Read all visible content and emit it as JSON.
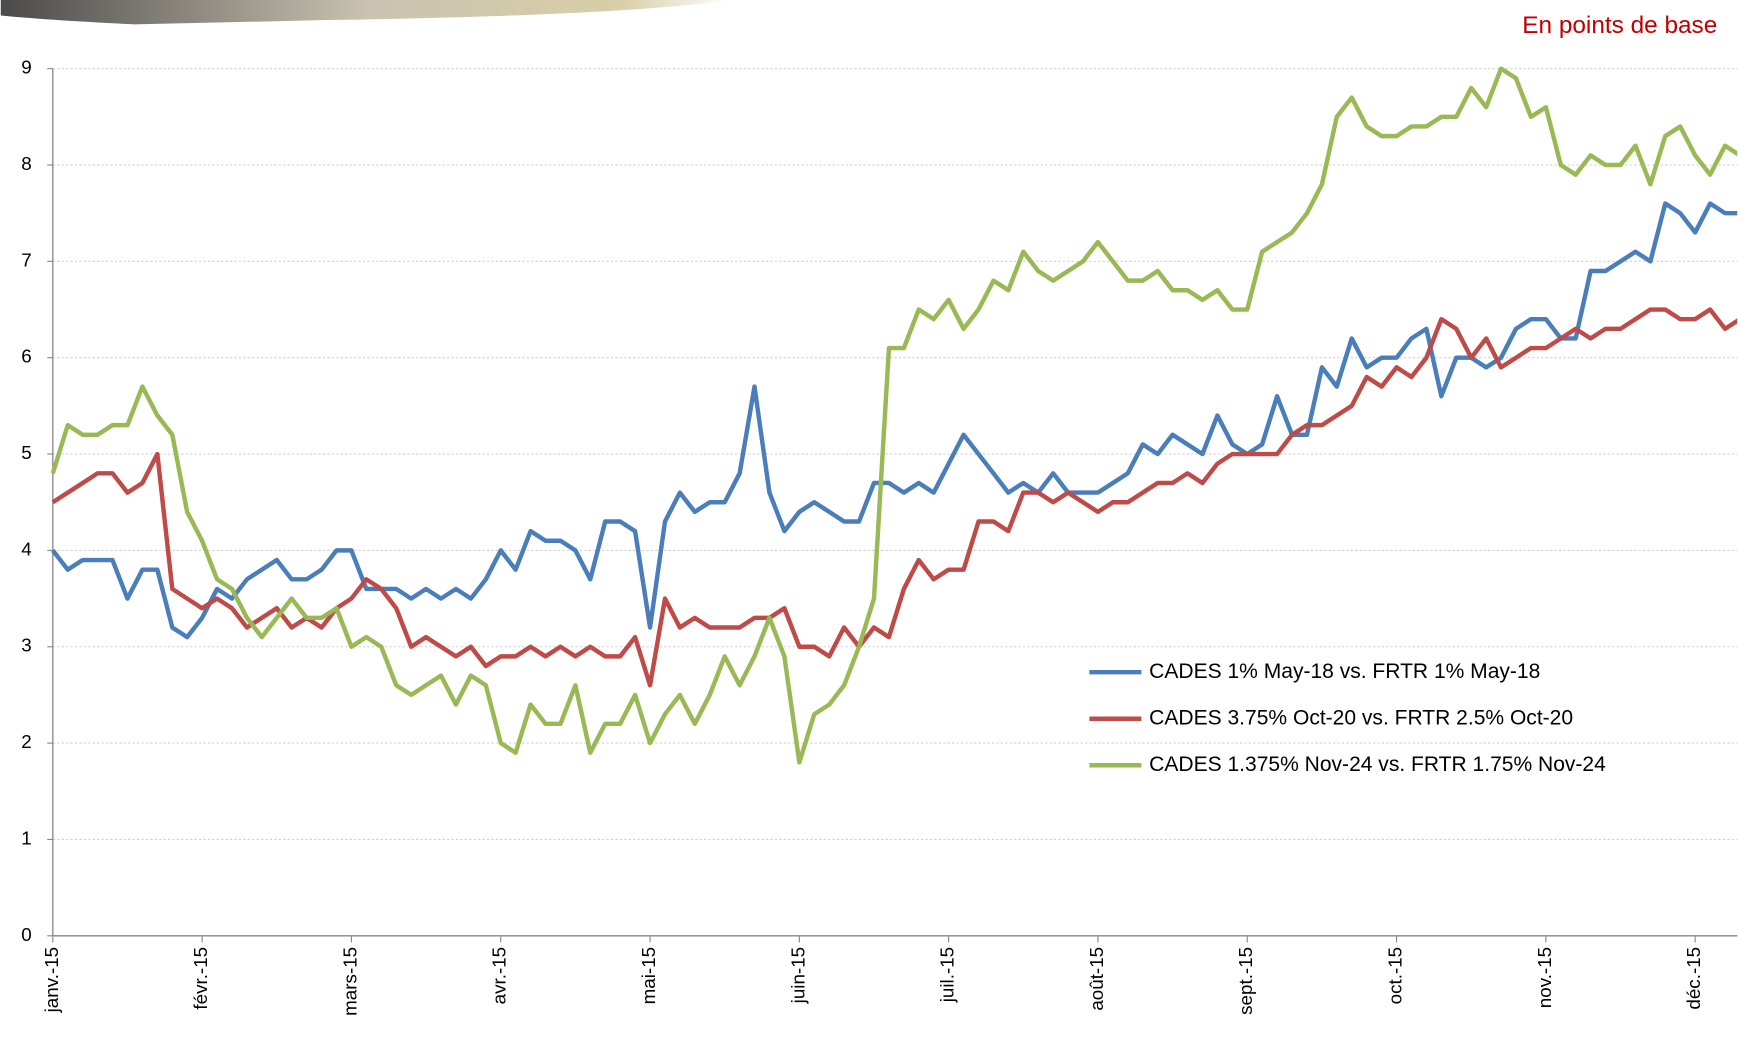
{
  "chart_data": {
    "type": "line",
    "subtitle": "En points de base",
    "categories": [
      "janv.-15",
      null,
      null,
      null,
      null,
      null,
      null,
      null,
      null,
      null,
      "févr.-15",
      null,
      null,
      null,
      null,
      null,
      null,
      null,
      null,
      null,
      "mars-15",
      null,
      null,
      null,
      null,
      null,
      null,
      null,
      null,
      null,
      "avr.-15",
      null,
      null,
      null,
      null,
      null,
      null,
      null,
      null,
      null,
      "mai-15",
      null,
      null,
      null,
      null,
      null,
      null,
      null,
      null,
      null,
      "juin-15",
      null,
      null,
      null,
      null,
      null,
      null,
      null,
      null,
      null,
      "juil.-15",
      null,
      null,
      null,
      null,
      null,
      null,
      null,
      null,
      null,
      "août-15",
      null,
      null,
      null,
      null,
      null,
      null,
      null,
      null,
      null,
      "sept.-15",
      null,
      null,
      null,
      null,
      null,
      null,
      null,
      null,
      null,
      "oct.-15",
      null,
      null,
      null,
      null,
      null,
      null,
      null,
      null,
      null,
      "nov.-15",
      null,
      null,
      null,
      null,
      null,
      null,
      null,
      null,
      null,
      "déc.-15",
      null,
      null,
      null
    ],
    "series": [
      {
        "name": "CADES 1% May-18 vs. FRTR 1% May-18",
        "color": "#4a7ebb",
        "values": [
          4.0,
          3.8,
          3.9,
          3.9,
          3.9,
          3.5,
          3.8,
          3.8,
          3.2,
          3.1,
          3.3,
          3.6,
          3.5,
          3.7,
          3.8,
          3.9,
          3.7,
          3.7,
          3.8,
          4.0,
          4.0,
          3.6,
          3.6,
          3.6,
          3.5,
          3.6,
          3.5,
          3.6,
          3.5,
          3.7,
          4.0,
          3.8,
          4.2,
          4.1,
          4.1,
          4.0,
          3.7,
          4.3,
          4.3,
          4.2,
          3.2,
          4.3,
          4.6,
          4.4,
          4.5,
          4.5,
          4.8,
          5.7,
          4.6,
          4.2,
          4.4,
          4.5,
          4.4,
          4.3,
          4.3,
          4.7,
          4.7,
          4.6,
          4.7,
          4.6,
          4.9,
          5.2,
          5.0,
          4.8,
          4.6,
          4.7,
          4.6,
          4.8,
          4.6,
          4.6,
          4.6,
          4.7,
          4.8,
          5.1,
          5.0,
          5.2,
          5.1,
          5.0,
          5.4,
          5.1,
          5.0,
          5.1,
          5.6,
          5.2,
          5.2,
          5.9,
          5.7,
          6.2,
          5.9,
          6.0,
          6.0,
          6.2,
          6.3,
          5.6,
          6.0,
          6.0,
          5.9,
          6.0,
          6.3,
          6.4,
          6.4,
          6.2,
          6.2,
          6.9,
          6.9,
          7.0,
          7.1,
          7.0,
          7.6,
          7.5,
          7.3,
          7.6,
          7.5,
          7.5
        ]
      },
      {
        "name": "CADES 3.75% Oct-20 vs. FRTR 2.5% Oct-20",
        "color": "#be4b48",
        "values": [
          4.5,
          4.6,
          4.7,
          4.8,
          4.8,
          4.6,
          4.7,
          5.0,
          3.6,
          3.5,
          3.4,
          3.5,
          3.4,
          3.2,
          3.3,
          3.4,
          3.2,
          3.3,
          3.2,
          3.4,
          3.5,
          3.7,
          3.6,
          3.4,
          3.0,
          3.1,
          3.0,
          2.9,
          3.0,
          2.8,
          2.9,
          2.9,
          3.0,
          2.9,
          3.0,
          2.9,
          3.0,
          2.9,
          2.9,
          3.1,
          2.6,
          3.5,
          3.2,
          3.3,
          3.2,
          3.2,
          3.2,
          3.3,
          3.3,
          3.4,
          3.0,
          3.0,
          2.9,
          3.2,
          3.0,
          3.2,
          3.1,
          3.6,
          3.9,
          3.7,
          3.8,
          3.8,
          4.3,
          4.3,
          4.2,
          4.6,
          4.6,
          4.5,
          4.6,
          4.5,
          4.4,
          4.5,
          4.5,
          4.6,
          4.7,
          4.7,
          4.8,
          4.7,
          4.9,
          5.0,
          5.0,
          5.0,
          5.0,
          5.2,
          5.3,
          5.3,
          5.4,
          5.5,
          5.8,
          5.7,
          5.9,
          5.8,
          6.0,
          6.4,
          6.3,
          6.0,
          6.2,
          5.9,
          6.0,
          6.1,
          6.1,
          6.2,
          6.3,
          6.2,
          6.3,
          6.3,
          6.4,
          6.5,
          6.5,
          6.4,
          6.4,
          6.5,
          6.3,
          6.4
        ]
      },
      {
        "name": "CADES 1.375% Nov-24 vs. FRTR 1.75% Nov-24",
        "color": "#98b954",
        "values": [
          4.8,
          5.3,
          5.2,
          5.2,
          5.3,
          5.3,
          5.7,
          5.4,
          5.2,
          4.4,
          4.1,
          3.7,
          3.6,
          3.3,
          3.1,
          3.3,
          3.5,
          3.3,
          3.3,
          3.4,
          3.0,
          3.1,
          3.0,
          2.6,
          2.5,
          2.6,
          2.7,
          2.4,
          2.7,
          2.6,
          2.0,
          1.9,
          2.4,
          2.2,
          2.2,
          2.6,
          1.9,
          2.2,
          2.2,
          2.5,
          2.0,
          2.3,
          2.5,
          2.2,
          2.5,
          2.9,
          2.6,
          2.9,
          3.3,
          2.9,
          1.8,
          2.3,
          2.4,
          2.6,
          3.0,
          3.5,
          6.1,
          6.1,
          6.5,
          6.4,
          6.6,
          6.3,
          6.5,
          6.8,
          6.7,
          7.1,
          6.9,
          6.8,
          6.9,
          7.0,
          7.2,
          7.0,
          6.8,
          6.8,
          6.9,
          6.7,
          6.7,
          6.6,
          6.7,
          6.5,
          6.5,
          7.1,
          7.2,
          7.3,
          7.5,
          7.8,
          8.5,
          8.7,
          8.4,
          8.3,
          8.3,
          8.4,
          8.4,
          8.5,
          8.5,
          8.8,
          8.6,
          9.0,
          8.9,
          8.5,
          8.6,
          8.0,
          7.9,
          8.1,
          8.0,
          8.0,
          8.2,
          7.8,
          8.3,
          8.4,
          8.1,
          7.9,
          8.2,
          8.1
        ]
      }
    ],
    "ylim": [
      0,
      9
    ],
    "yticks": [
      0,
      1,
      2,
      3,
      4,
      5,
      6,
      7,
      8,
      9
    ],
    "grid": true
  }
}
